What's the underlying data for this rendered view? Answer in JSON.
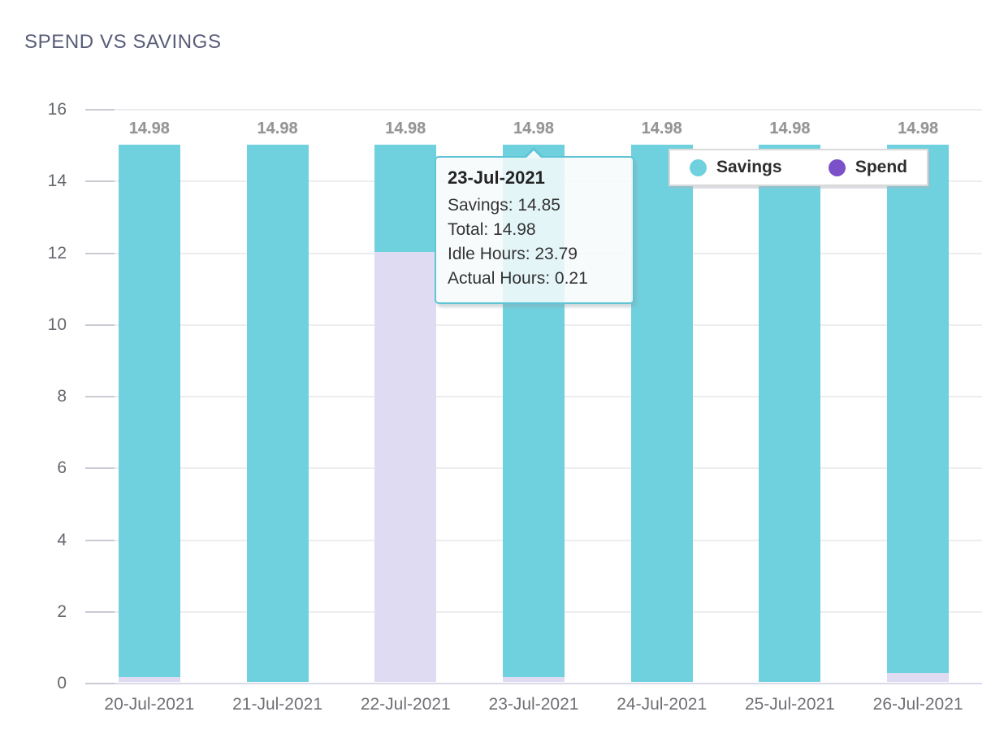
{
  "header": {
    "title": "SPEND VS SAVINGS"
  },
  "chart_data": {
    "type": "bar",
    "stacked": true,
    "title": "SPEND VS SAVINGS",
    "categories": [
      "20-Jul-2021",
      "21-Jul-2021",
      "22-Jul-2021",
      "23-Jul-2021",
      "24-Jul-2021",
      "25-Jul-2021",
      "26-Jul-2021"
    ],
    "series": [
      {
        "name": "Spend",
        "legend_color": "#7b50c8",
        "bar_color": "#dedbf2",
        "values": [
          0.13,
          0,
          12,
          0.13,
          0,
          0,
          0.25
        ]
      },
      {
        "name": "Savings",
        "legend_color": "#70d1de",
        "bar_color": "#70d1de",
        "values": [
          14.85,
          14.98,
          2.98,
          14.85,
          14.98,
          14.98,
          14.73
        ]
      }
    ],
    "bar_total_labels": [
      "14.98",
      "14.98",
      "14.98",
      "14.98",
      "14.98",
      "14.98",
      "14.98"
    ],
    "ylim": [
      0,
      16
    ],
    "ytick_step": 2,
    "ytick_labels": [
      "0",
      "2",
      "4",
      "6",
      "8",
      "10",
      "12",
      "14",
      "16"
    ],
    "grid": true,
    "legend_position": "top-right"
  },
  "legend": {
    "items": [
      {
        "label": "Savings",
        "color": "#70d1de"
      },
      {
        "label": "Spend",
        "color": "#7b50c8"
      }
    ]
  },
  "tooltip": {
    "title": "23-Jul-2021",
    "lines": [
      "Savings: 14.85",
      "Total: 14.98",
      "Idle Hours: 23.79",
      "Actual Hours: 0.21"
    ]
  },
  "colors": {
    "savings_bar": "#70d1de",
    "spend_bar_fill": "#dedbf2",
    "spend_legend": "#7b50c8",
    "tooltip_border": "#5fc5d5",
    "title_text": "#585c78",
    "axis_text": "#65686d",
    "value_label_text": "#949494"
  }
}
